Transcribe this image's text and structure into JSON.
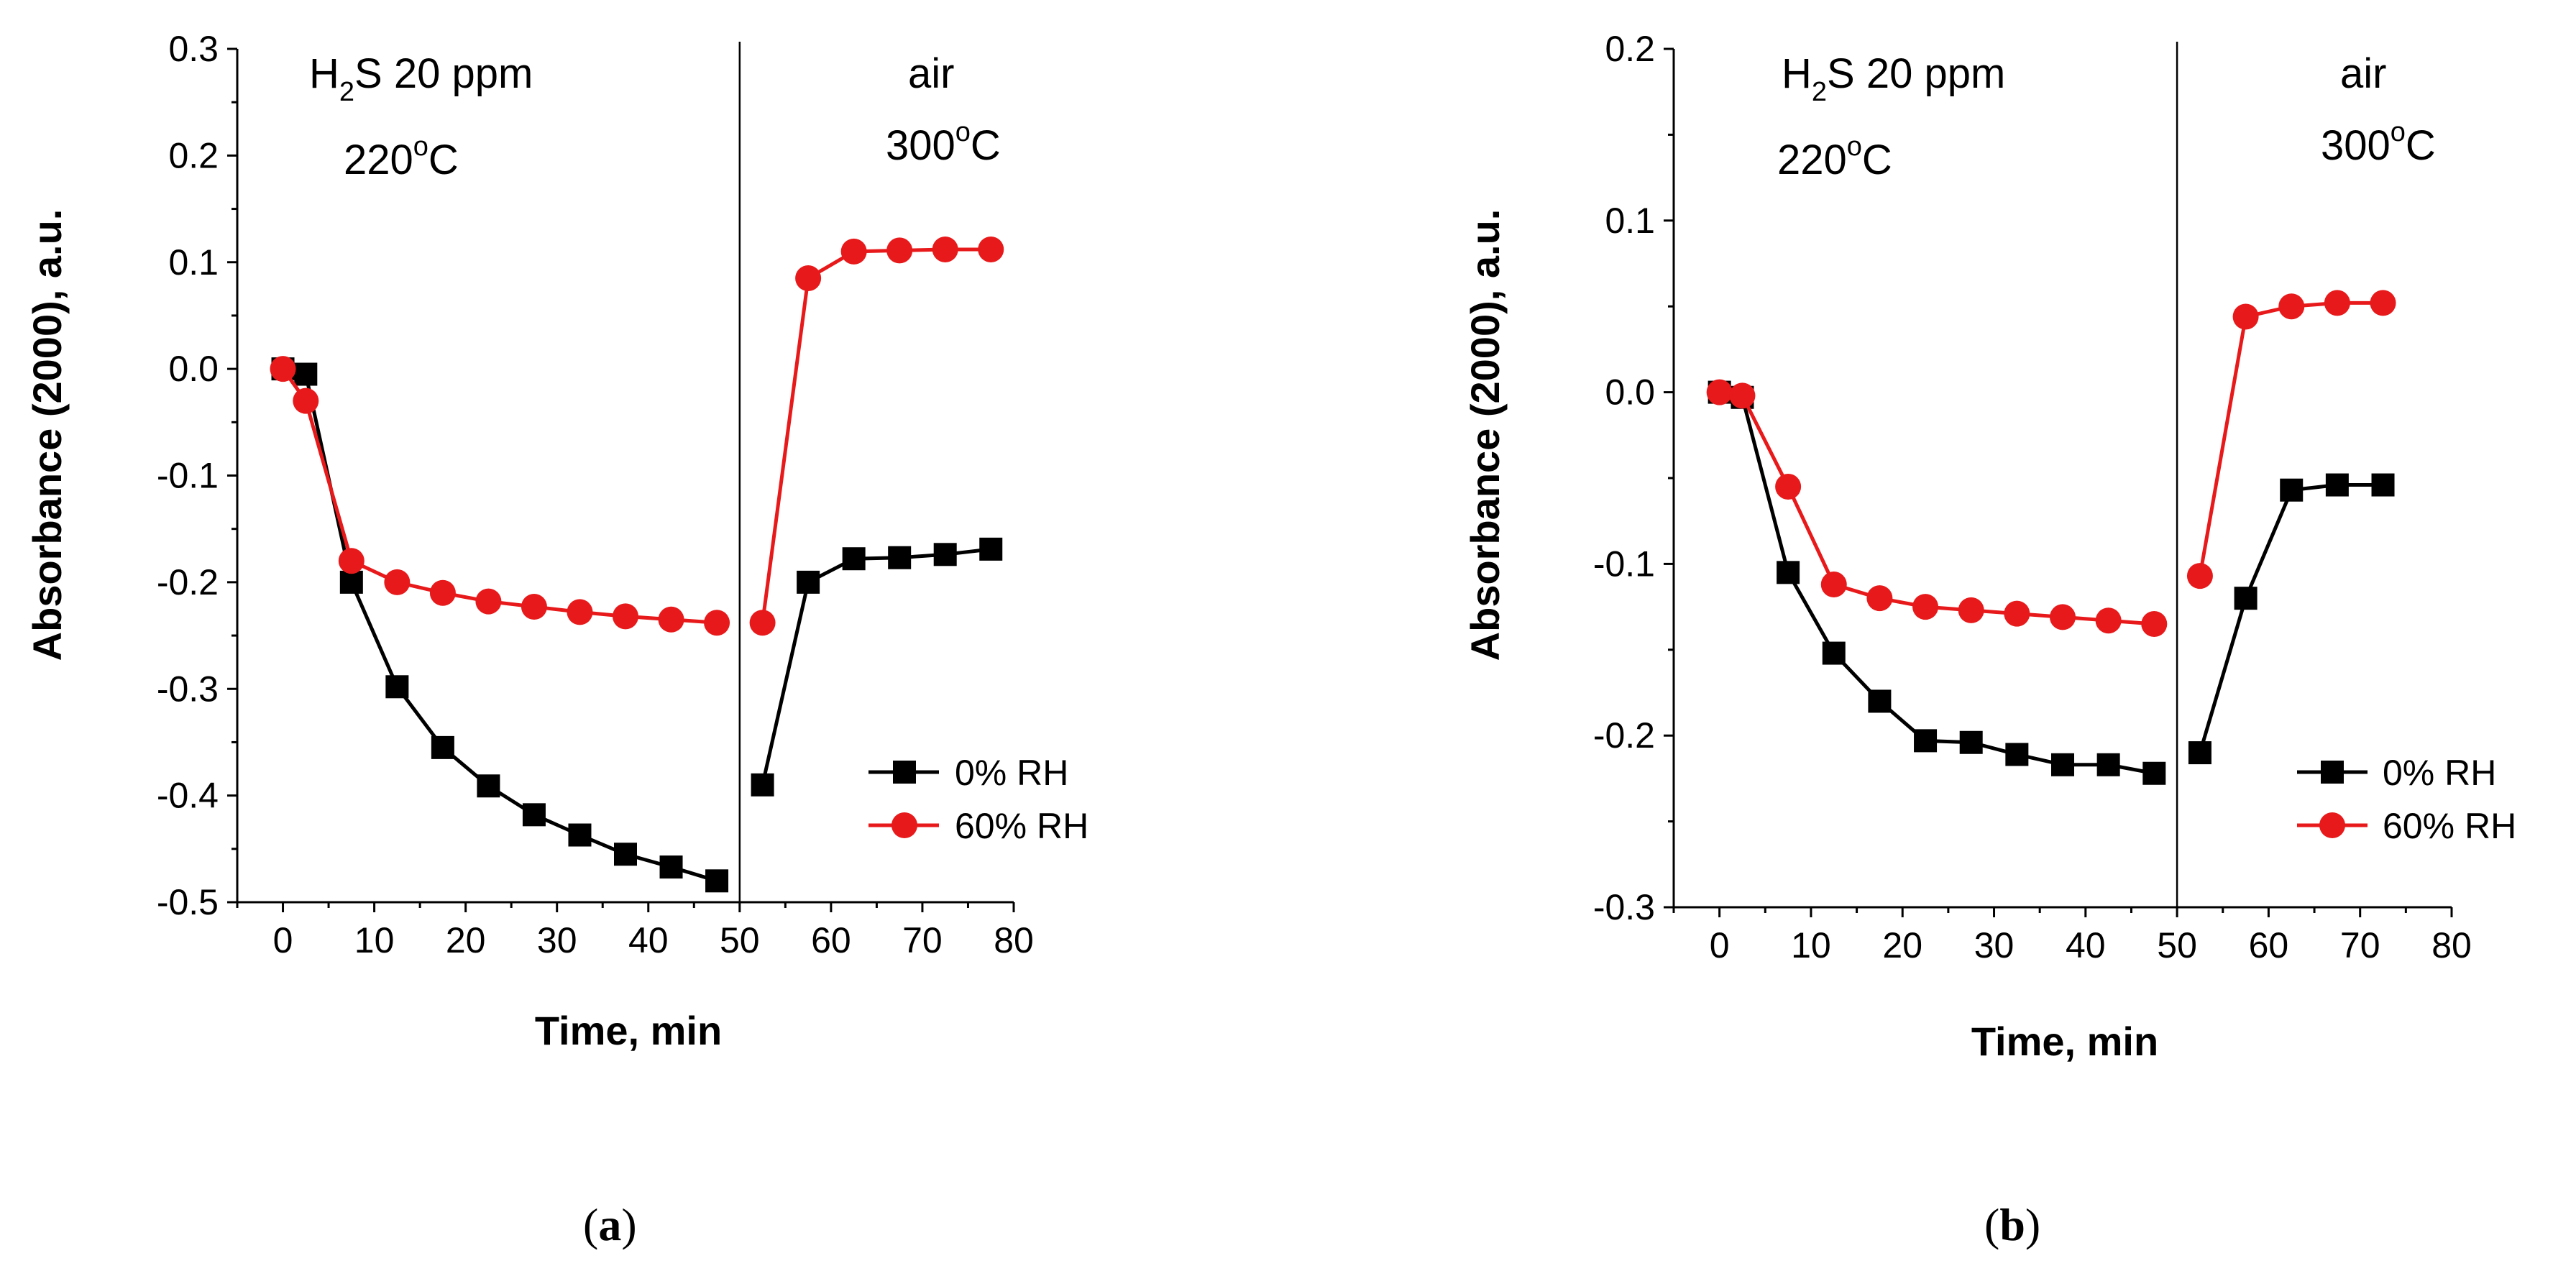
{
  "chart_data": [
    {
      "type": "line",
      "panel": "a",
      "caption": {
        "open": "(",
        "letter": "a",
        "close": ")"
      },
      "xlabel": "Time, min",
      "ylabel": "Absorbance (2000), a.u.",
      "xlim": [
        -5,
        80
      ],
      "ylim": [
        -0.5,
        0.3
      ],
      "xticks": [
        0,
        10,
        20,
        30,
        40,
        50,
        60,
        70,
        80
      ],
      "yticks": [
        -0.5,
        -0.4,
        -0.3,
        -0.2,
        -0.1,
        0.0,
        0.1,
        0.2,
        0.3
      ],
      "ytick_labels": [
        "-0.5",
        "-0.4",
        "-0.3",
        "-0.2",
        "-0.1",
        "0.0",
        "0.1",
        "0.2",
        "0.3"
      ],
      "xtick_labels": [
        "0",
        "10",
        "20",
        "30",
        "40",
        "50",
        "60",
        "70",
        "80"
      ],
      "divider_x": 50,
      "annotations": {
        "left_gas_prefix": "H",
        "left_gas_sub": "2",
        "left_gas_suffix": "S 20 ppm",
        "left_temp": "220",
        "left_deg": "o",
        "left_unit": "C",
        "right_gas": "air",
        "right_temp": "300",
        "right_deg": "o",
        "right_unit": "C"
      },
      "series": [
        {
          "name": "0% RH",
          "color": "#000000",
          "marker": "square",
          "segments": [
            [
              [
                0,
                0.0
              ],
              [
                2.5,
                -0.005
              ],
              [
                7.5,
                -0.2
              ],
              [
                12.5,
                -0.298
              ],
              [
                17.5,
                -0.355
              ],
              [
                22.5,
                -0.391
              ],
              [
                27.5,
                -0.418
              ],
              [
                32.5,
                -0.437
              ],
              [
                37.5,
                -0.455
              ],
              [
                42.5,
                -0.467
              ],
              [
                47.5,
                -0.48
              ]
            ],
            [
              [
                52.5,
                -0.39
              ],
              [
                57.5,
                -0.2
              ],
              [
                62.5,
                -0.178
              ],
              [
                67.5,
                -0.177
              ],
              [
                72.5,
                -0.174
              ],
              [
                77.5,
                -0.169
              ]
            ]
          ]
        },
        {
          "name": "60% RH",
          "color": "#e8191a",
          "marker": "circle",
          "segments": [
            [
              [
                0,
                0.0
              ],
              [
                2.5,
                -0.03
              ],
              [
                7.5,
                -0.18
              ],
              [
                12.5,
                -0.2
              ],
              [
                17.5,
                -0.21
              ],
              [
                22.5,
                -0.218
              ],
              [
                27.5,
                -0.223
              ],
              [
                32.5,
                -0.228
              ],
              [
                37.5,
                -0.232
              ],
              [
                42.5,
                -0.235
              ],
              [
                47.5,
                -0.238
              ]
            ],
            [
              [
                52.5,
                -0.238
              ],
              [
                57.5,
                0.085
              ],
              [
                62.5,
                0.11
              ],
              [
                67.5,
                0.111
              ],
              [
                72.5,
                0.112
              ],
              [
                77.5,
                0.112
              ]
            ]
          ]
        }
      ]
    },
    {
      "type": "line",
      "panel": "b",
      "caption": {
        "open": "(",
        "letter": "b",
        "close": ")"
      },
      "xlabel": "Time, min",
      "ylabel": "Absorbance (2000), a.u.",
      "xlim": [
        -5,
        80
      ],
      "ylim": [
        -0.3,
        0.2
      ],
      "xticks": [
        0,
        10,
        20,
        30,
        40,
        50,
        60,
        70,
        80
      ],
      "yticks": [
        -0.3,
        -0.2,
        -0.1,
        0.0,
        0.1,
        0.2
      ],
      "ytick_labels": [
        "-0.3",
        "-0.2",
        "-0.1",
        "0.0",
        "0.1",
        "0.2"
      ],
      "xtick_labels": [
        "0",
        "10",
        "20",
        "30",
        "40",
        "50",
        "60",
        "70",
        "80"
      ],
      "divider_x": 50,
      "annotations": {
        "left_gas_prefix": "H",
        "left_gas_sub": "2",
        "left_gas_suffix": "S 20 ppm",
        "left_temp": "220",
        "left_deg": "o",
        "left_unit": "C",
        "right_gas": "air",
        "right_temp": "300",
        "right_deg": "o",
        "right_unit": "C"
      },
      "series": [
        {
          "name": "0% RH",
          "color": "#000000",
          "marker": "square",
          "segments": [
            [
              [
                0,
                0.0
              ],
              [
                2.5,
                -0.003
              ],
              [
                7.5,
                -0.105
              ],
              [
                12.5,
                -0.152
              ],
              [
                17.5,
                -0.18
              ],
              [
                22.5,
                -0.203
              ],
              [
                27.5,
                -0.204
              ],
              [
                32.5,
                -0.211
              ],
              [
                37.5,
                -0.217
              ],
              [
                42.5,
                -0.217
              ],
              [
                47.5,
                -0.222
              ]
            ],
            [
              [
                52.5,
                -0.21
              ],
              [
                57.5,
                -0.12
              ],
              [
                62.5,
                -0.057
              ],
              [
                67.5,
                -0.054
              ],
              [
                72.5,
                -0.054
              ]
            ]
          ]
        },
        {
          "name": "60% RH",
          "color": "#e8191a",
          "marker": "circle",
          "segments": [
            [
              [
                0,
                0.0
              ],
              [
                2.5,
                -0.002
              ],
              [
                7.5,
                -0.055
              ],
              [
                12.5,
                -0.112
              ],
              [
                17.5,
                -0.12
              ],
              [
                22.5,
                -0.125
              ],
              [
                27.5,
                -0.127
              ],
              [
                32.5,
                -0.129
              ],
              [
                37.5,
                -0.131
              ],
              [
                42.5,
                -0.133
              ],
              [
                47.5,
                -0.135
              ]
            ],
            [
              [
                52.5,
                -0.107
              ],
              [
                57.5,
                0.044
              ],
              [
                62.5,
                0.05
              ],
              [
                67.5,
                0.052
              ],
              [
                72.5,
                0.052
              ]
            ]
          ]
        }
      ]
    }
  ]
}
